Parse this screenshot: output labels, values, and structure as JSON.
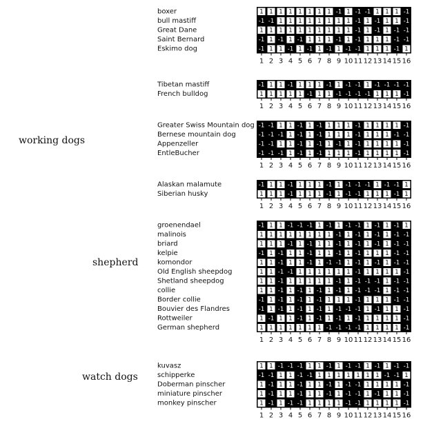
{
  "chart_data": {
    "type": "heatmap",
    "value_colors": {
      "1": "#ffffff",
      "-1": "#000000"
    },
    "bit_labels": [
      "1",
      "2",
      "3",
      "4",
      "5",
      "6",
      "7",
      "8",
      "9",
      "10",
      "11",
      "12",
      "13",
      "14",
      "15",
      "16"
    ],
    "groups": [
      {
        "label": "working dogs"
      },
      {
        "label": "shepherd"
      },
      {
        "label": "watch dogs"
      }
    ],
    "blocks": [
      {
        "rows": [
          {
            "name": "boxer",
            "values": [
              1,
              1,
              1,
              1,
              1,
              1,
              1,
              1,
              -1,
              1,
              -1,
              -1,
              1,
              1,
              1,
              -1
            ]
          },
          {
            "name": "bull mastiff",
            "values": [
              -1,
              -1,
              1,
              1,
              1,
              1,
              1,
              1,
              1,
              1,
              -1,
              1,
              -1,
              1,
              1,
              -1
            ]
          },
          {
            "name": "Great Dane",
            "values": [
              1,
              1,
              1,
              1,
              1,
              1,
              1,
              1,
              1,
              1,
              -1,
              1,
              -1,
              1,
              -1,
              -1
            ]
          },
          {
            "name": "Saint Bernard",
            "values": [
              -1,
              1,
              -1,
              1,
              -1,
              1,
              1,
              1,
              -1,
              1,
              -1,
              1,
              1,
              1,
              -1,
              -1
            ]
          },
          {
            "name": "Eskimo dog",
            "values": [
              -1,
              1,
              1,
              -1,
              1,
              -1,
              1,
              -1,
              1,
              -1,
              -1,
              1,
              1,
              1,
              -1,
              1
            ]
          }
        ]
      },
      {
        "rows": [
          {
            "name": "Tibetan mastiff",
            "values": [
              -1,
              1,
              1,
              -1,
              1,
              1,
              1,
              -1,
              1,
              -1,
              -1,
              1,
              -1,
              -1,
              -1,
              -1
            ]
          },
          {
            "name": "French bulldog",
            "values": [
              1,
              1,
              1,
              1,
              1,
              -1,
              1,
              1,
              -1,
              -1,
              -1,
              -1,
              1,
              1,
              1,
              -1
            ]
          }
        ]
      },
      {
        "rows": [
          {
            "name": "Greater Swiss Mountain dog",
            "values": [
              -1,
              -1,
              1,
              1,
              -1,
              1,
              -1,
              1,
              1,
              1,
              -1,
              1,
              1,
              1,
              1,
              -1
            ]
          },
          {
            "name": "Bernese mountain dog",
            "values": [
              -1,
              -1,
              -1,
              1,
              -1,
              1,
              -1,
              1,
              1,
              1,
              -1,
              1,
              1,
              1,
              -1,
              -1
            ]
          },
          {
            "name": "Appenzeller",
            "values": [
              -1,
              -1,
              1,
              1,
              -1,
              1,
              -1,
              1,
              -1,
              1,
              -1,
              1,
              1,
              1,
              1,
              -1
            ]
          },
          {
            "name": "EntleBucher",
            "values": [
              -1,
              -1,
              -1,
              1,
              -1,
              1,
              -1,
              1,
              1,
              1,
              -1,
              1,
              1,
              1,
              1,
              -1
            ]
          }
        ]
      },
      {
        "rows": [
          {
            "name": "Alaskan malamute",
            "values": [
              -1,
              1,
              1,
              -1,
              1,
              1,
              1,
              -1,
              1,
              -1,
              -1,
              -1,
              1,
              -1,
              -1,
              1
            ]
          },
          {
            "name": "Siberian husky",
            "values": [
              1,
              1,
              1,
              -1,
              1,
              1,
              1,
              -1,
              1,
              -1,
              -1,
              1,
              1,
              1,
              -1,
              1
            ]
          }
        ]
      },
      {
        "rows": [
          {
            "name": "groenendael",
            "values": [
              -1,
              1,
              1,
              -1,
              -1,
              -1,
              1,
              -1,
              1,
              -1,
              -1,
              1,
              -1,
              1,
              -1,
              1
            ]
          },
          {
            "name": "malinois",
            "values": [
              1,
              1,
              1,
              1,
              1,
              1,
              1,
              1,
              -1,
              1,
              -1,
              1,
              -1,
              1,
              -1,
              -1
            ]
          },
          {
            "name": "briard",
            "values": [
              1,
              1,
              1,
              -1,
              1,
              -1,
              1,
              1,
              -1,
              1,
              -1,
              1,
              -1,
              1,
              -1,
              -1
            ]
          },
          {
            "name": "kelpie",
            "values": [
              -1,
              1,
              -1,
              1,
              1,
              -1,
              1,
              1,
              -1,
              1,
              -1,
              1,
              1,
              1,
              -1,
              -1
            ]
          },
          {
            "name": "komondor",
            "values": [
              1,
              1,
              -1,
              1,
              1,
              -1,
              1,
              -1,
              -1,
              1,
              -1,
              1,
              -1,
              1,
              -1,
              -1
            ]
          },
          {
            "name": "Old English sheepdog",
            "values": [
              1,
              1,
              -1,
              -1,
              1,
              1,
              1,
              1,
              1,
              1,
              -1,
              1,
              1,
              1,
              1,
              -1
            ]
          },
          {
            "name": "Shetland sheepdog",
            "values": [
              1,
              1,
              -1,
              1,
              1,
              1,
              1,
              1,
              -1,
              1,
              -1,
              -1,
              -1,
              1,
              -1,
              -1
            ]
          },
          {
            "name": "collie",
            "values": [
              1,
              1,
              -1,
              1,
              -1,
              1,
              -1,
              1,
              -1,
              1,
              -1,
              -1,
              -1,
              1,
              -1,
              -1
            ]
          },
          {
            "name": "Border collie",
            "values": [
              -1,
              1,
              -1,
              1,
              -1,
              1,
              -1,
              1,
              1,
              1,
              -1,
              1,
              1,
              1,
              -1,
              -1
            ]
          },
          {
            "name": "Bouvier des Flandres",
            "values": [
              -1,
              1,
              -1,
              1,
              -1,
              1,
              -1,
              1,
              -1,
              -1,
              -1,
              1,
              -1,
              1,
              1,
              -1
            ]
          },
          {
            "name": "Rottweiler",
            "values": [
              1,
              -1,
              1,
              1,
              -1,
              1,
              -1,
              1,
              -1,
              1,
              -1,
              1,
              1,
              1,
              1,
              -1
            ]
          },
          {
            "name": "German shepherd",
            "values": [
              1,
              1,
              1,
              1,
              1,
              1,
              1,
              -1,
              -1,
              -1,
              -1,
              1,
              1,
              1,
              1,
              -1
            ]
          }
        ]
      },
      {
        "rows": [
          {
            "name": "kuvasz",
            "values": [
              1,
              1,
              -1,
              -1,
              -1,
              1,
              1,
              -1,
              1,
              -1,
              -1,
              1,
              -1,
              1,
              -1,
              -1
            ]
          },
          {
            "name": "schipperke",
            "values": [
              -1,
              -1,
              1,
              1,
              -1,
              -1,
              1,
              1,
              1,
              1,
              1,
              1,
              1,
              -1,
              -1,
              1
            ]
          },
          {
            "name": "Doberman pinscher",
            "values": [
              1,
              -1,
              1,
              1,
              -1,
              1,
              1,
              -1,
              1,
              -1,
              -1,
              1,
              1,
              1,
              1,
              -1
            ]
          },
          {
            "name": "miniature pinscher",
            "values": [
              1,
              -1,
              1,
              1,
              -1,
              1,
              1,
              -1,
              1,
              -1,
              -1,
              1,
              -1,
              1,
              1,
              -1
            ]
          },
          {
            "name": "monkey pinscher",
            "values": [
              1,
              -1,
              1,
              -1,
              -1,
              1,
              1,
              1,
              1,
              -1,
              -1,
              1,
              1,
              1,
              1,
              -1
            ]
          }
        ]
      }
    ]
  }
}
